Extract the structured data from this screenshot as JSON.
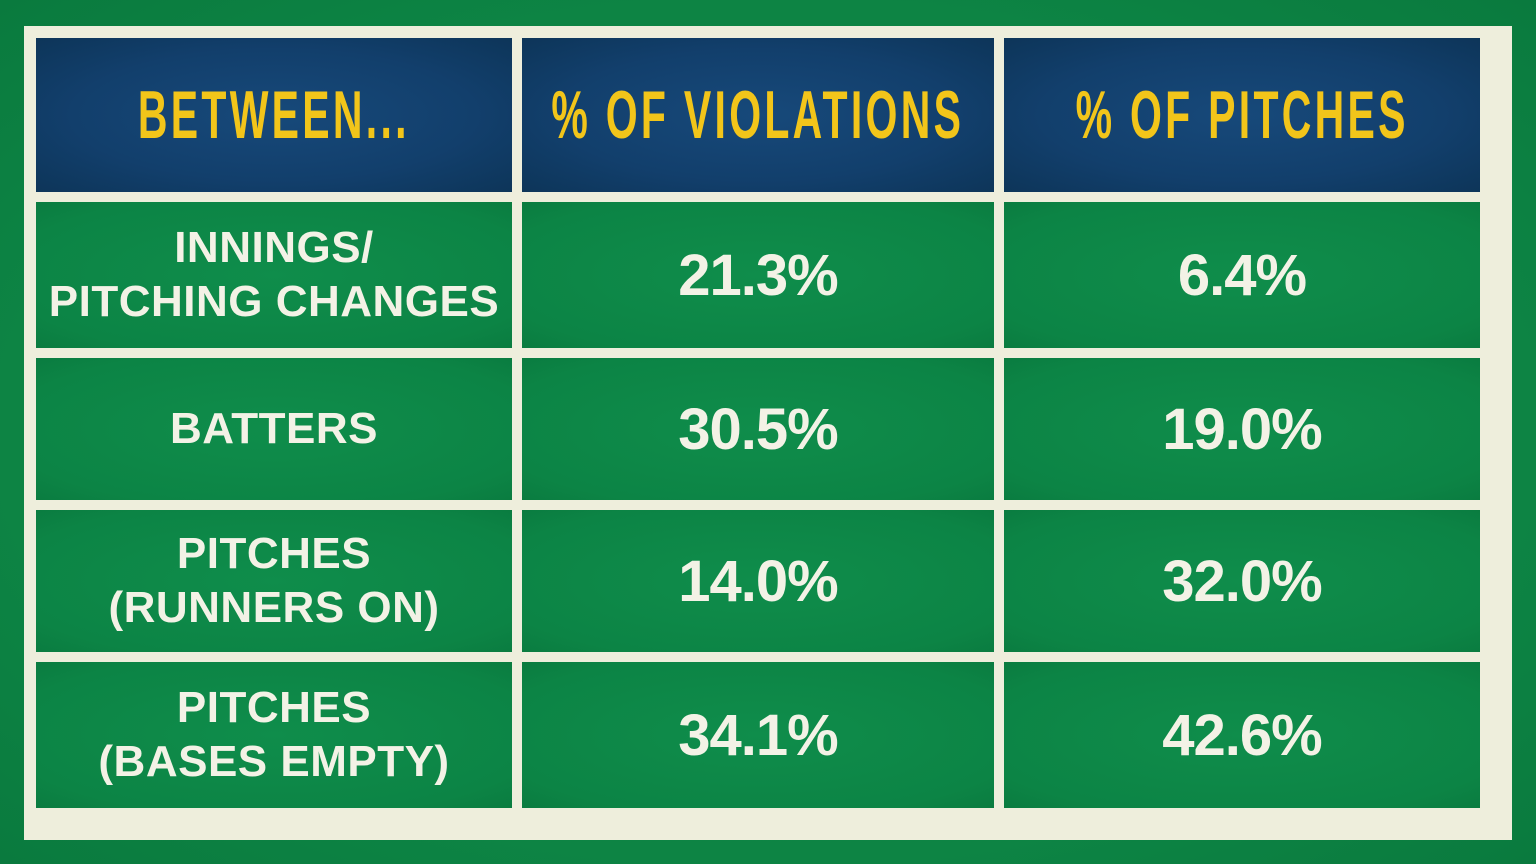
{
  "table": {
    "headers": [
      "BETWEEN...",
      "% OF VIOLATIONS",
      "% OF PITCHES"
    ],
    "rows": [
      [
        [
          "INNINGS/",
          "PITCHING CHANGES"
        ],
        "21.3%",
        "6.4%"
      ],
      [
        [
          "BATTERS"
        ],
        "30.5%",
        "19.0%"
      ],
      [
        [
          "PITCHES",
          "(RUNNERS ON)"
        ],
        "14.0%",
        "32.0%"
      ],
      [
        [
          "PITCHES",
          "(BASES EMPTY)"
        ],
        "34.1%",
        "42.6%"
      ]
    ]
  }
}
